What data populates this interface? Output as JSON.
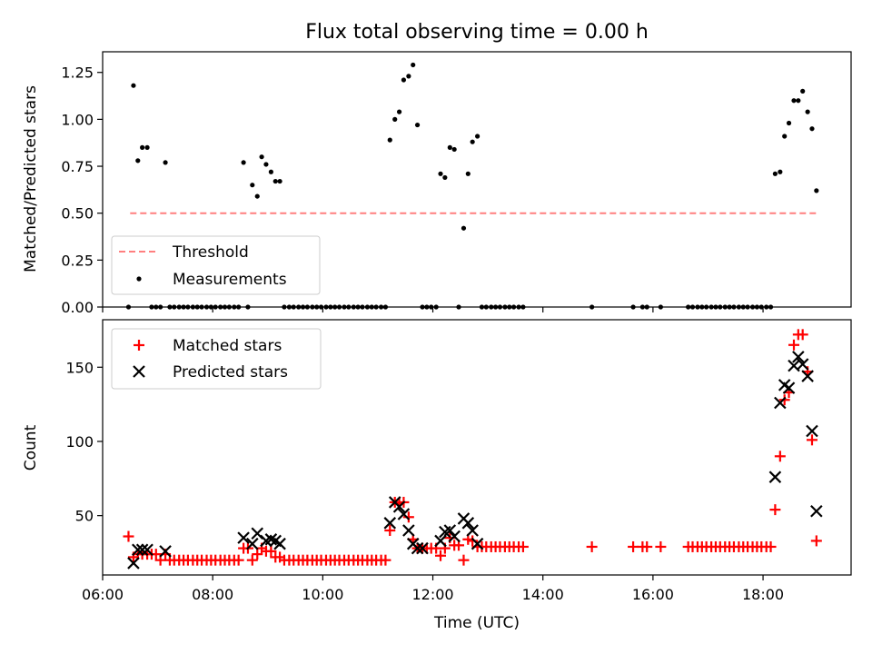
{
  "figure": {
    "title": "Flux total observing time = 0.00 h",
    "xlabel": "Time (UTC)"
  },
  "chart_data": [
    {
      "type": "scatter",
      "name": "top-panel",
      "ylabel": "Matched/Predicted stars",
      "xlim": [
        6.0,
        19.6
      ],
      "ylim": [
        0.0,
        1.36
      ],
      "yticks": [
        0.0,
        0.25,
        0.5,
        0.75,
        1.0,
        1.25
      ],
      "ytick_labels": [
        "0.00",
        "0.25",
        "0.50",
        "0.75",
        "1.00",
        "1.25"
      ],
      "legend": {
        "placement": "lower-left",
        "entries": [
          "Threshold",
          "Measurements"
        ]
      },
      "series": [
        {
          "name": "Threshold",
          "kind": "dashed-line",
          "color": "#ff7f7f",
          "x": [
            6.5,
            19.0
          ],
          "y": [
            0.5,
            0.5
          ]
        },
        {
          "name": "Measurements",
          "kind": "dot",
          "color": "#000000",
          "x": [
            6.47,
            6.56,
            6.64,
            6.72,
            6.81,
            6.89,
            6.97,
            7.05,
            7.14,
            7.22,
            7.3,
            7.39,
            7.47,
            7.55,
            7.64,
            7.72,
            7.8,
            7.89,
            7.97,
            8.05,
            8.14,
            8.22,
            8.3,
            8.39,
            8.47,
            8.56,
            8.64,
            8.72,
            8.81,
            8.89,
            8.97,
            9.06,
            9.14,
            9.22,
            9.3,
            9.39,
            9.47,
            9.56,
            9.64,
            9.72,
            9.81,
            9.89,
            9.97,
            10.06,
            10.14,
            10.22,
            10.3,
            10.39,
            10.47,
            10.56,
            10.64,
            10.72,
            10.81,
            10.89,
            10.97,
            11.06,
            11.14,
            11.22,
            11.31,
            11.39,
            11.47,
            11.56,
            11.64,
            11.72,
            11.81,
            11.89,
            11.97,
            12.06,
            12.14,
            12.22,
            12.31,
            12.39,
            12.47,
            12.56,
            12.64,
            12.72,
            12.81,
            12.89,
            12.97,
            13.06,
            13.14,
            13.22,
            13.31,
            13.39,
            13.47,
            13.56,
            13.64,
            14.89,
            15.64,
            15.81,
            15.89,
            16.14,
            16.64,
            16.72,
            16.81,
            16.89,
            16.97,
            17.06,
            17.14,
            17.22,
            17.31,
            17.39,
            17.47,
            17.56,
            17.64,
            17.72,
            17.81,
            17.89,
            17.97,
            18.06,
            18.14,
            18.22,
            18.31,
            18.39,
            18.47,
            18.56,
            18.64,
            18.72,
            18.81,
            18.89,
            18.97
          ],
          "y": [
            0.0,
            1.18,
            0.78,
            0.85,
            0.85,
            0.0,
            0.0,
            0.0,
            0.77,
            0.0,
            0.0,
            0.0,
            0.0,
            0.0,
            0.0,
            0.0,
            0.0,
            0.0,
            0.0,
            0.0,
            0.0,
            0.0,
            0.0,
            0.0,
            0.0,
            0.77,
            0.0,
            0.65,
            0.59,
            0.8,
            0.76,
            0.72,
            0.67,
            0.67,
            0.0,
            0.0,
            0.0,
            0.0,
            0.0,
            0.0,
            0.0,
            0.0,
            0.0,
            0.0,
            0.0,
            0.0,
            0.0,
            0.0,
            0.0,
            0.0,
            0.0,
            0.0,
            0.0,
            0.0,
            0.0,
            0.0,
            0.0,
            0.89,
            1.0,
            1.04,
            1.21,
            1.23,
            1.29,
            0.97,
            0.0,
            0.0,
            0.0,
            0.0,
            0.71,
            0.69,
            0.85,
            0.84,
            0.0,
            0.42,
            0.71,
            0.88,
            0.91,
            0.0,
            0.0,
            0.0,
            0.0,
            0.0,
            0.0,
            0.0,
            0.0,
            0.0,
            0.0,
            0.0,
            0.0,
            0.0,
            0.0,
            0.0,
            0.0,
            0.0,
            0.0,
            0.0,
            0.0,
            0.0,
            0.0,
            0.0,
            0.0,
            0.0,
            0.0,
            0.0,
            0.0,
            0.0,
            0.0,
            0.0,
            0.0,
            0.0,
            0.0,
            0.71,
            0.72,
            0.91,
            0.98,
            1.1,
            1.1,
            1.15,
            1.04,
            0.95,
            0.62
          ]
        }
      ]
    },
    {
      "type": "scatter",
      "name": "bottom-panel",
      "ylabel": "Count",
      "xlim": [
        6.0,
        19.6
      ],
      "ylim": [
        10,
        182
      ],
      "yticks": [
        50,
        100,
        150
      ],
      "ytick_labels": [
        "50",
        "100",
        "150"
      ],
      "xticks": [
        6,
        8,
        10,
        12,
        14,
        16,
        18
      ],
      "xtick_labels": [
        "06:00",
        "08:00",
        "10:00",
        "12:00",
        "14:00",
        "16:00",
        "18:00"
      ],
      "legend": {
        "placement": "top-left",
        "entries": [
          "Matched stars",
          "Predicted stars"
        ]
      },
      "series": [
        {
          "name": "Matched stars",
          "kind": "plus",
          "color": "#ff0000",
          "x": [
            6.47,
            6.56,
            6.64,
            6.72,
            6.81,
            6.89,
            6.97,
            7.05,
            7.14,
            7.22,
            7.3,
            7.39,
            7.47,
            7.55,
            7.64,
            7.72,
            7.8,
            7.89,
            7.97,
            8.05,
            8.14,
            8.22,
            8.3,
            8.39,
            8.47,
            8.56,
            8.64,
            8.72,
            8.81,
            8.89,
            8.97,
            9.06,
            9.14,
            9.22,
            9.3,
            9.39,
            9.47,
            9.56,
            9.64,
            9.72,
            9.81,
            9.89,
            9.97,
            10.06,
            10.14,
            10.22,
            10.3,
            10.39,
            10.47,
            10.56,
            10.64,
            10.72,
            10.81,
            10.89,
            10.97,
            11.06,
            11.14,
            11.22,
            11.31,
            11.39,
            11.47,
            11.56,
            11.64,
            11.72,
            11.81,
            11.89,
            11.97,
            12.06,
            12.14,
            12.22,
            12.31,
            12.39,
            12.47,
            12.56,
            12.64,
            12.72,
            12.81,
            12.89,
            12.97,
            13.06,
            13.14,
            13.22,
            13.31,
            13.39,
            13.47,
            13.56,
            13.64,
            14.89,
            15.64,
            15.81,
            15.89,
            16.14,
            16.64,
            16.72,
            16.81,
            16.89,
            16.97,
            17.06,
            17.14,
            17.22,
            17.31,
            17.39,
            17.47,
            17.56,
            17.64,
            17.72,
            17.81,
            17.89,
            17.97,
            18.06,
            18.14,
            18.22,
            18.31,
            18.39,
            18.47,
            18.56,
            18.64,
            18.72,
            18.81,
            18.89,
            18.97
          ],
          "y": [
            36,
            22,
            24,
            24,
            24,
            24,
            24,
            20,
            24,
            20,
            20,
            20,
            20,
            20,
            20,
            20,
            20,
            20,
            20,
            20,
            20,
            20,
            20,
            20,
            20,
            28,
            28,
            20,
            24,
            28,
            26,
            26,
            22,
            22,
            20,
            20,
            20,
            20,
            20,
            20,
            20,
            20,
            20,
            20,
            20,
            20,
            20,
            20,
            20,
            20,
            20,
            20,
            20,
            20,
            20,
            20,
            20,
            40,
            59,
            58,
            59,
            49,
            34,
            28,
            28,
            28,
            28,
            28,
            23,
            28,
            35,
            30,
            30,
            20,
            34,
            33,
            29,
            29,
            29,
            29,
            29,
            29,
            29,
            29,
            29,
            29,
            29,
            29,
            29,
            29,
            29,
            29,
            29,
            29,
            29,
            29,
            29,
            29,
            29,
            29,
            29,
            29,
            29,
            29,
            29,
            29,
            29,
            29,
            29,
            29,
            29,
            54,
            90,
            128,
            133,
            165,
            172,
            172,
            147,
            101,
            33
          ]
        },
        {
          "name": "Predicted stars",
          "kind": "cross",
          "color": "#000000",
          "x": [
            6.56,
            6.64,
            6.72,
            6.81,
            7.14,
            8.56,
            8.72,
            8.81,
            8.97,
            9.06,
            9.14,
            9.22,
            11.22,
            11.31,
            11.39,
            11.47,
            11.56,
            11.64,
            11.72,
            11.81,
            12.14,
            12.22,
            12.31,
            12.39,
            12.56,
            12.64,
            12.72,
            12.81,
            18.22,
            18.31,
            18.39,
            18.47,
            18.56,
            18.64,
            18.72,
            18.81,
            18.89,
            18.97
          ],
          "y": [
            18,
            27,
            27,
            27,
            26,
            35,
            31,
            38,
            33,
            34,
            33,
            31,
            45,
            59,
            56,
            51,
            40,
            31,
            28,
            28,
            33,
            39,
            40,
            36,
            48,
            45,
            40,
            31,
            76,
            126,
            138,
            136,
            151,
            157,
            152,
            144,
            107,
            53
          ]
        }
      ]
    }
  ]
}
